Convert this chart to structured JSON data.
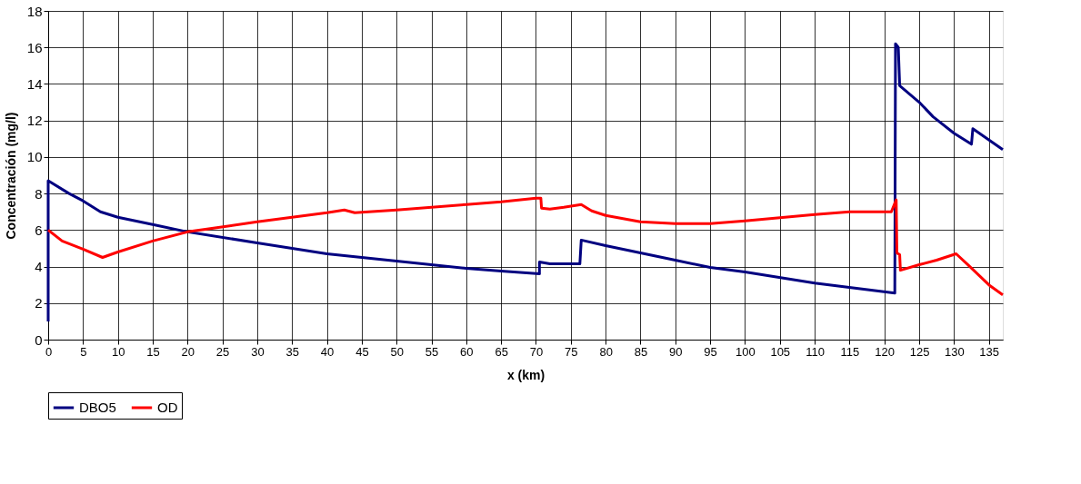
{
  "chart_data": {
    "type": "line",
    "xlabel": "x (km)",
    "ylabel": "Concentración (mg/l)",
    "xlim": [
      0,
      137
    ],
    "xticks": [
      0,
      5,
      10,
      15,
      20,
      25,
      30,
      35,
      40,
      45,
      50,
      55,
      60,
      65,
      70,
      75,
      80,
      85,
      90,
      95,
      100,
      105,
      110,
      115,
      120,
      125,
      130,
      135
    ],
    "ylim": [
      0,
      18
    ],
    "yticks": [
      0,
      2,
      4,
      6,
      8,
      10,
      12,
      14,
      16,
      18
    ],
    "grid": true,
    "legend": "bottom",
    "marker": "none",
    "line_style": "solid",
    "series": [
      {
        "name": "DBO5",
        "color": "#000080",
        "x": [
          0,
          0,
          3,
          5,
          7.5,
          10,
          15,
          20,
          30,
          40,
          50,
          60,
          65,
          70.5,
          70.5,
          72,
          76.3,
          76.5,
          80,
          90,
          95,
          100,
          110,
          121.5,
          121.6,
          122,
          122.2,
          125,
          127,
          130,
          132.5,
          132.7,
          137
        ],
        "values": [
          1.0,
          8.7,
          8.0,
          7.6,
          7.0,
          6.7,
          6.3,
          5.9,
          5.3,
          4.7,
          4.3,
          3.9,
          3.75,
          3.6,
          4.25,
          4.15,
          4.15,
          5.45,
          5.15,
          4.35,
          3.95,
          3.7,
          3.1,
          2.55,
          16.2,
          16.0,
          13.9,
          13.0,
          12.2,
          11.3,
          10.7,
          11.55,
          10.4
        ]
      },
      {
        "name": "OD",
        "color": "#ff0000",
        "x": [
          0,
          2,
          5,
          7.8,
          10,
          15,
          20,
          30,
          40,
          42.5,
          44,
          50,
          60,
          65,
          70,
          70.7,
          70.8,
          72,
          74,
          76.5,
          78,
          80,
          85,
          90,
          95,
          100,
          110,
          115,
          121,
          121.7,
          121.8,
          122.2,
          122.3,
          125,
          127.5,
          130.3,
          132,
          135,
          137
        ],
        "values": [
          6.0,
          5.4,
          4.95,
          4.5,
          4.8,
          5.4,
          5.9,
          6.45,
          6.95,
          7.1,
          6.95,
          7.1,
          7.4,
          7.55,
          7.75,
          7.75,
          7.2,
          7.15,
          7.25,
          7.4,
          7.05,
          6.8,
          6.45,
          6.35,
          6.35,
          6.5,
          6.85,
          7.0,
          7.0,
          7.65,
          4.75,
          4.65,
          3.8,
          4.1,
          4.35,
          4.7,
          4.1,
          3.0,
          2.45
        ]
      }
    ]
  }
}
